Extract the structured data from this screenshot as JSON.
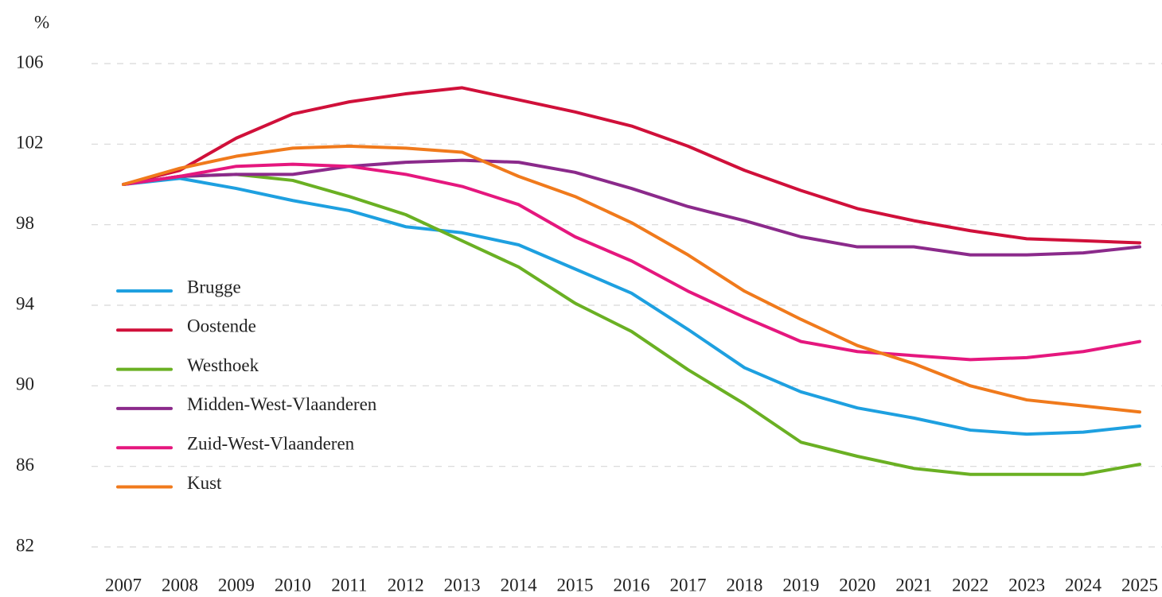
{
  "chart_data": {
    "type": "line",
    "y_unit": "%",
    "x": [
      2007,
      2008,
      2009,
      2010,
      2011,
      2012,
      2013,
      2014,
      2015,
      2016,
      2017,
      2018,
      2019,
      2020,
      2021,
      2022,
      2023,
      2024,
      2025
    ],
    "xlim": [
      2007,
      2025
    ],
    "xticks": [
      2007,
      2008,
      2009,
      2010,
      2011,
      2012,
      2013,
      2014,
      2015,
      2016,
      2017,
      2018,
      2019,
      2020,
      2021,
      2022,
      2023,
      2024,
      2025
    ],
    "ylim": [
      82,
      106
    ],
    "yticks": [
      82,
      86,
      90,
      94,
      98,
      102,
      106
    ],
    "grid": true,
    "legend": "left",
    "series": [
      {
        "name": "Brugge",
        "color": "#1ea0e0",
        "values": [
          100,
          100.3,
          99.8,
          99.2,
          98.7,
          97.9,
          97.6,
          97.0,
          95.8,
          94.6,
          92.8,
          90.9,
          89.7,
          88.9,
          88.4,
          87.8,
          87.6,
          87.7,
          88.0
        ]
      },
      {
        "name": "Oostende",
        "color": "#d0103a",
        "values": [
          100,
          100.7,
          102.3,
          103.5,
          104.1,
          104.5,
          104.8,
          104.2,
          103.6,
          102.9,
          101.9,
          100.7,
          99.7,
          98.8,
          98.2,
          97.7,
          97.3,
          97.2,
          97.1
        ]
      },
      {
        "name": "Westhoek",
        "color": "#6ab023",
        "values": [
          100,
          100.4,
          100.5,
          100.2,
          99.4,
          98.5,
          97.2,
          95.9,
          94.1,
          92.7,
          90.8,
          89.1,
          87.2,
          86.5,
          85.9,
          85.6,
          85.6,
          85.6,
          86.1
        ]
      },
      {
        "name": "Midden-West-Vlaanderen",
        "color": "#8b2a8b",
        "values": [
          100,
          100.4,
          100.5,
          100.5,
          100.9,
          101.1,
          101.2,
          101.1,
          100.6,
          99.8,
          98.9,
          98.2,
          97.4,
          96.9,
          96.9,
          96.5,
          96.5,
          96.6,
          96.9
        ]
      },
      {
        "name": "Zuid-West-Vlaanderen",
        "color": "#e5177e",
        "values": [
          100,
          100.4,
          100.9,
          101.0,
          100.9,
          100.5,
          99.9,
          99.0,
          97.4,
          96.2,
          94.7,
          93.4,
          92.2,
          91.7,
          91.5,
          91.3,
          91.4,
          91.7,
          92.2
        ]
      },
      {
        "name": "Kust",
        "color": "#f07a1c",
        "values": [
          100,
          100.8,
          101.4,
          101.8,
          101.9,
          101.8,
          101.6,
          100.4,
          99.4,
          98.1,
          96.5,
          94.7,
          93.3,
          92.0,
          91.1,
          90.0,
          89.3,
          89.0,
          88.7
        ]
      }
    ]
  }
}
